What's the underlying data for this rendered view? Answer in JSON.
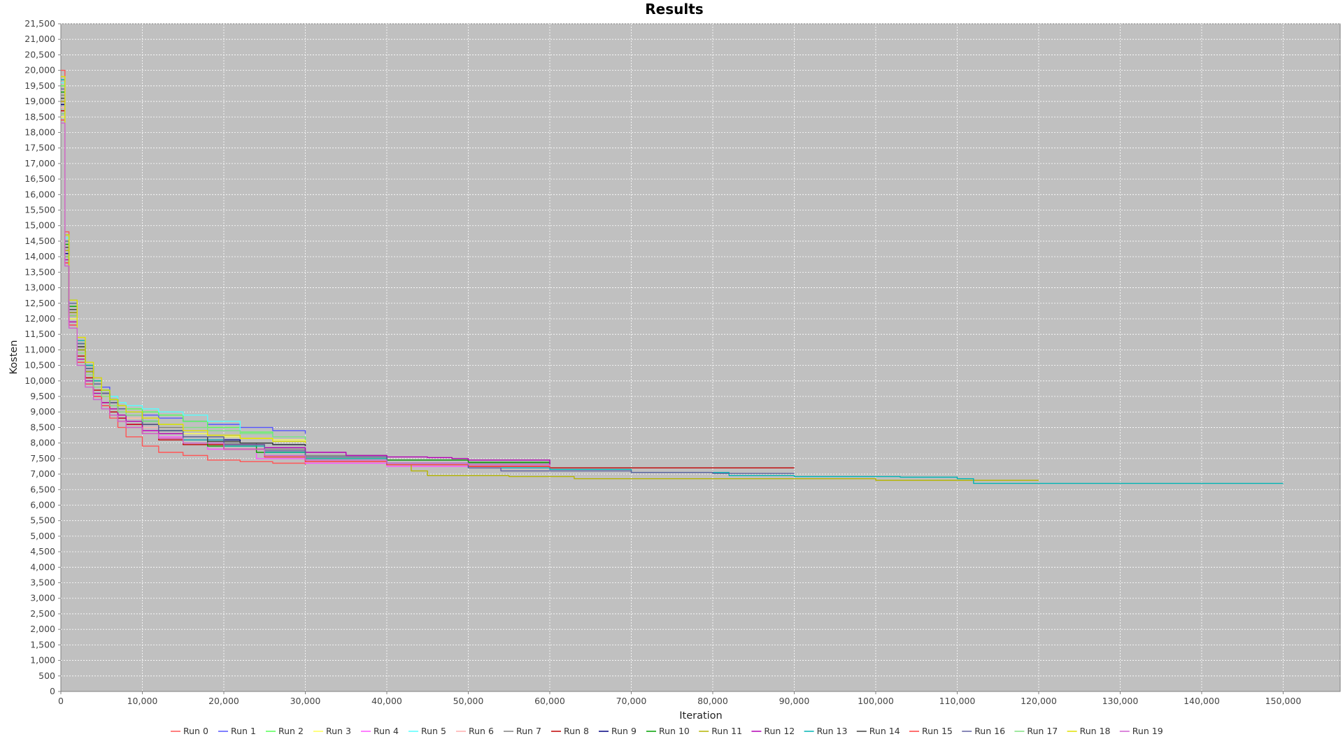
{
  "chart_data": {
    "type": "line",
    "title": "Results",
    "xlabel": "Iteration",
    "ylabel": "Kosten",
    "xlim": [
      0,
      157000
    ],
    "ylim": [
      0,
      21500
    ],
    "x_ticks": [
      0,
      10000,
      20000,
      30000,
      40000,
      50000,
      60000,
      70000,
      80000,
      90000,
      100000,
      110000,
      120000,
      130000,
      140000,
      150000
    ],
    "y_ticks": [
      0,
      500,
      1000,
      1500,
      2000,
      2500,
      3000,
      3500,
      4000,
      4500,
      5000,
      5500,
      6000,
      6500,
      7000,
      7500,
      8000,
      8500,
      9000,
      9500,
      10000,
      10500,
      11000,
      11500,
      12000,
      12500,
      13000,
      13500,
      14000,
      14500,
      15000,
      15500,
      16000,
      16500,
      17000,
      17500,
      18000,
      18500,
      19000,
      19500,
      20000,
      20500,
      21000,
      21500
    ],
    "x_tick_labels": [
      "0",
      "10,000",
      "20,000",
      "30,000",
      "40,000",
      "50,000",
      "60,000",
      "70,000",
      "80,000",
      "90,000",
      "100,000",
      "110,000",
      "120,000",
      "130,000",
      "140,000",
      "150,000"
    ],
    "y_tick_labels": [
      "0",
      "500",
      "1,000",
      "1,500",
      "2,000",
      "2,500",
      "3,000",
      "3,500",
      "4,000",
      "4,500",
      "5,000",
      "5,500",
      "6,000",
      "6,500",
      "7,000",
      "7,500",
      "8,000",
      "8,500",
      "9,000",
      "9,500",
      "10,000",
      "10,500",
      "11,000",
      "11,500",
      "12,000",
      "12,500",
      "13,000",
      "13,500",
      "14,000",
      "14,500",
      "15,000",
      "15,500",
      "16,000",
      "16,500",
      "17,000",
      "17,500",
      "18,000",
      "18,500",
      "19,000",
      "19,500",
      "20,000",
      "20,500",
      "21,000",
      "21,500"
    ],
    "grid": true,
    "legend_position": "bottom",
    "series": [
      {
        "name": "Run 0",
        "color": "#ff5555",
        "x": [
          0,
          500,
          1000,
          2000,
          3000,
          4000,
          5000,
          6000,
          7000,
          8000,
          10000,
          12000,
          15000,
          18000,
          22000,
          26000,
          30000
        ],
        "y": [
          20000,
          14800,
          12600,
          11000,
          10100,
          9600,
          9200,
          8800,
          8500,
          8200,
          7900,
          7700,
          7600,
          7450,
          7400,
          7350,
          7300
        ]
      },
      {
        "name": "Run 1",
        "color": "#5555ff",
        "x": [
          0,
          500,
          1000,
          2000,
          3000,
          4000,
          5000,
          6000,
          7000,
          8000,
          10000,
          12000,
          15000,
          18000,
          22000,
          26000,
          30000
        ],
        "y": [
          19000,
          14200,
          12200,
          11000,
          10500,
          10100,
          9800,
          9400,
          9100,
          9000,
          8900,
          8800,
          8700,
          8600,
          8500,
          8400,
          8300
        ]
      },
      {
        "name": "Run 2",
        "color": "#55ff55",
        "x": [
          0,
          500,
          1000,
          2000,
          3000,
          4000,
          5000,
          6000,
          7000,
          8000,
          10000,
          12000,
          15000,
          18000,
          22000,
          26000,
          30000
        ],
        "y": [
          19500,
          14500,
          12400,
          11000,
          10300,
          9900,
          9600,
          9400,
          9200,
          9100,
          9000,
          8900,
          8700,
          8500,
          8350,
          8200,
          8100
        ]
      },
      {
        "name": "Run 3",
        "color": "#ffff55",
        "x": [
          0,
          500,
          1000,
          2000,
          3000,
          4000,
          5000,
          6000,
          7000,
          8000,
          10000,
          12000,
          15000,
          18000,
          22000,
          26000,
          30000
        ],
        "y": [
          18500,
          14000,
          12000,
          11200,
          10400,
          9900,
          9500,
          9200,
          9000,
          8800,
          8600,
          8500,
          8300,
          8200,
          8150,
          8100,
          8050
        ]
      },
      {
        "name": "Run 4",
        "color": "#ff55ff",
        "x": [
          0,
          500,
          1000,
          2000,
          3000,
          4000,
          5000,
          6000,
          7000,
          8000,
          10000,
          12000,
          15000,
          18000,
          24000,
          30000,
          40000,
          50000,
          60000
        ],
        "y": [
          19000,
          13800,
          11800,
          10600,
          9900,
          9500,
          9200,
          9000,
          8800,
          8600,
          8400,
          8200,
          8000,
          7800,
          7500,
          7350,
          7250,
          7200,
          7180
        ]
      },
      {
        "name": "Run 5",
        "color": "#55ffff",
        "x": [
          0,
          500,
          1000,
          2000,
          3000,
          4000,
          5000,
          6000,
          7000,
          8000,
          10000,
          12000,
          15000,
          18000,
          22000,
          26000,
          30000
        ],
        "y": [
          19600,
          14600,
          12500,
          11200,
          10400,
          10000,
          9700,
          9500,
          9300,
          9200,
          9100,
          9000,
          8900,
          8700,
          8300,
          8200,
          8150
        ]
      },
      {
        "name": "Run 6",
        "color": "#ffafaf",
        "x": [
          0,
          500,
          1000,
          2000,
          3000,
          4000,
          5000,
          6000,
          7000,
          8000,
          10000,
          12000,
          15000,
          18000,
          24000,
          30000,
          40000,
          50000,
          60000
        ],
        "y": [
          18800,
          14100,
          12100,
          10900,
          10200,
          9800,
          9500,
          9200,
          9000,
          8800,
          8500,
          8300,
          8100,
          7900,
          7700,
          7550,
          7450,
          7380,
          7330
        ]
      },
      {
        "name": "Run 7",
        "color": "#808080",
        "x": [
          0,
          500,
          1000,
          2000,
          3000,
          4000,
          5000,
          6000,
          7000,
          8000,
          10000,
          12000,
          15000,
          18000,
          24000,
          30000,
          40000,
          50000,
          60000
        ],
        "y": [
          19200,
          14300,
          12300,
          11100,
          10300,
          9900,
          9600,
          9400,
          9200,
          9000,
          8700,
          8500,
          8200,
          8000,
          7800,
          7600,
          7450,
          7350,
          7300
        ]
      },
      {
        "name": "Run 8",
        "color": "#c00000",
        "x": [
          0,
          500,
          1000,
          2000,
          3000,
          4000,
          5000,
          6000,
          7000,
          8000,
          10000,
          12000,
          15000,
          20000,
          25000,
          30000,
          40000,
          50000,
          60000,
          90000
        ],
        "y": [
          18700,
          14000,
          12100,
          10800,
          10100,
          9700,
          9300,
          9000,
          8800,
          8600,
          8300,
          8100,
          7950,
          7800,
          7550,
          7400,
          7300,
          7250,
          7200,
          7200
        ]
      },
      {
        "name": "Run 9",
        "color": "#000080",
        "x": [
          0,
          500,
          1000,
          2000,
          3000,
          4000,
          5000,
          6000,
          7000,
          8000,
          10000,
          12000,
          15000,
          18000,
          22000,
          26000,
          30000
        ],
        "y": [
          18900,
          14100,
          12200,
          11000,
          10300,
          9900,
          9600,
          9300,
          9100,
          8900,
          8600,
          8400,
          8200,
          8100,
          8000,
          7950,
          7900
        ]
      },
      {
        "name": "Run 10",
        "color": "#00a000",
        "x": [
          0,
          500,
          1000,
          2000,
          3000,
          4000,
          5000,
          6000,
          7000,
          8000,
          10000,
          12000,
          15000,
          18000,
          24000,
          30000,
          40000,
          50000,
          60000
        ],
        "y": [
          19300,
          14400,
          12400,
          11200,
          10500,
          10000,
          9700,
          9400,
          9200,
          9000,
          8700,
          8400,
          8100,
          7900,
          7700,
          7550,
          7450,
          7380,
          7350
        ]
      },
      {
        "name": "Run 11",
        "color": "#b4b400",
        "x": [
          0,
          500,
          1000,
          2000,
          3000,
          4000,
          5000,
          6000,
          7000,
          8000,
          10000,
          12000,
          15000,
          20000,
          25000,
          30000,
          40000,
          43000,
          45000,
          55000,
          63000,
          80000,
          100000,
          110000,
          120000
        ],
        "y": [
          19000,
          14200,
          12200,
          11000,
          10300,
          9900,
          9600,
          9300,
          9100,
          8900,
          8600,
          8400,
          8200,
          7950,
          7700,
          7500,
          7300,
          7100,
          6950,
          6920,
          6850,
          6850,
          6800,
          6800,
          6800
        ]
      },
      {
        "name": "Run 12",
        "color": "#b400b4",
        "x": [
          0,
          500,
          1000,
          2000,
          3000,
          4000,
          5000,
          6000,
          7000,
          8000,
          10000,
          12000,
          15000,
          20000,
          25000,
          30000,
          35000,
          40000,
          45000,
          48000,
          50000,
          60000
        ],
        "y": [
          18600,
          13900,
          11900,
          10700,
          10000,
          9600,
          9300,
          9100,
          8900,
          8700,
          8400,
          8300,
          8100,
          7950,
          7850,
          7700,
          7600,
          7550,
          7530,
          7500,
          7450,
          7300
        ]
      },
      {
        "name": "Run 13",
        "color": "#00b4b4",
        "x": [
          0,
          500,
          1000,
          2000,
          3000,
          4000,
          5000,
          6000,
          7000,
          8000,
          10000,
          12000,
          15000,
          20000,
          25000,
          30000,
          40000,
          50000,
          60000,
          70000,
          82000,
          90000,
          103000,
          110000,
          112000,
          120000,
          150000
        ],
        "y": [
          19700,
          14700,
          12600,
          11300,
          10500,
          10000,
          9700,
          9400,
          9200,
          9000,
          8700,
          8400,
          8100,
          7900,
          7700,
          7500,
          7300,
          7200,
          7150,
          7050,
          6950,
          6920,
          6900,
          6850,
          6700,
          6700,
          6700
        ]
      },
      {
        "name": "Run 14",
        "color": "#404040",
        "x": [
          0,
          500,
          1000,
          2000,
          3000,
          4000,
          5000,
          6000,
          7000,
          8000,
          10000,
          12000,
          15000,
          18000,
          22000,
          26000,
          30000
        ],
        "y": [
          19100,
          14300,
          12300,
          11100,
          10400,
          9900,
          9600,
          9300,
          9100,
          8900,
          8600,
          8400,
          8200,
          8050,
          8000,
          7950,
          7900
        ]
      },
      {
        "name": "Run 15",
        "color": "#ff4040",
        "x": [
          0,
          500,
          1000,
          2000,
          3000,
          4000,
          5000,
          6000,
          7000,
          8000,
          10000,
          12000,
          15000,
          20000,
          25000,
          30000,
          40000,
          50000,
          60000
        ],
        "y": [
          18400,
          13800,
          11800,
          10600,
          9900,
          9500,
          9200,
          8900,
          8700,
          8500,
          8300,
          8150,
          8000,
          7800,
          7550,
          7400,
          7300,
          7250,
          7200
        ]
      },
      {
        "name": "Run 16",
        "color": "#6060a0",
        "x": [
          0,
          500,
          1000,
          2000,
          3000,
          4000,
          5000,
          6000,
          7000,
          8000,
          10000,
          12000,
          15000,
          20000,
          25000,
          30000,
          40000,
          50000,
          54000,
          60000,
          70000,
          80000,
          90000
        ],
        "y": [
          19400,
          14500,
          12500,
          11200,
          10400,
          9900,
          9600,
          9300,
          9100,
          8900,
          8600,
          8400,
          8200,
          7950,
          7750,
          7550,
          7350,
          7200,
          7100,
          7100,
          7050,
          7020,
          7020
        ]
      },
      {
        "name": "Run 17",
        "color": "#80e080",
        "x": [
          0,
          500,
          1000,
          2000,
          3000,
          4000,
          5000,
          6000,
          7000,
          8000,
          10000,
          12000,
          15000,
          18000,
          22000,
          26000,
          30000
        ],
        "y": [
          18600,
          14000,
          12100,
          10900,
          10200,
          9800,
          9500,
          9200,
          9000,
          8900,
          8700,
          8600,
          8500,
          8400,
          8300,
          8200,
          8100
        ]
      },
      {
        "name": "Run 18",
        "color": "#e0e000",
        "x": [
          0,
          500,
          1000,
          2000,
          3000,
          4000,
          5000,
          6000,
          7000,
          8000,
          10000,
          12000,
          15000,
          18000,
          22000,
          26000,
          30000
        ],
        "y": [
          19800,
          14700,
          12600,
          11400,
          10600,
          10100,
          9700,
          9400,
          9200,
          9000,
          8800,
          8600,
          8400,
          8250,
          8150,
          8050,
          8000
        ]
      },
      {
        "name": "Run 19",
        "color": "#d060d0",
        "x": [
          0,
          500,
          1000,
          2000,
          3000,
          4000,
          5000,
          6000,
          7000,
          8000,
          10000,
          12000,
          15000,
          20000,
          25000,
          30000,
          40000,
          50000,
          60000
        ],
        "y": [
          18300,
          13700,
          11700,
          10500,
          9800,
          9400,
          9100,
          8900,
          8700,
          8500,
          8300,
          8150,
          8000,
          7800,
          7600,
          7450,
          7350,
          7300,
          7250
        ]
      }
    ]
  }
}
